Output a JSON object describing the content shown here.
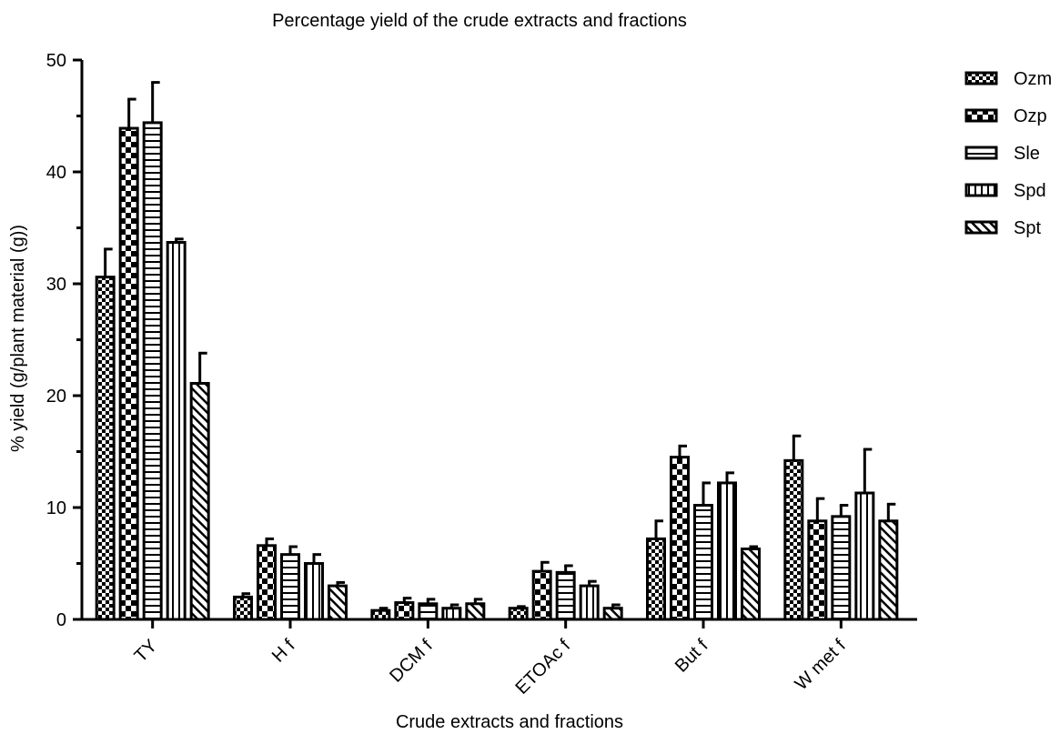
{
  "chart_data": {
    "type": "bar",
    "title": "Percentage yield of the crude extracts and fractions",
    "xlabel": "Crude extracts and fractions",
    "ylabel": "% yield (g/plant material (g))",
    "ylim": [
      0,
      50
    ],
    "yticks": [
      0,
      10,
      20,
      30,
      40,
      50
    ],
    "categories": [
      "TY",
      "H f",
      "DCM f",
      "ETOAc f",
      "But f",
      "W met f"
    ],
    "series": [
      {
        "name": "Ozm",
        "pattern": "checker-fine",
        "values": [
          30.6,
          2.0,
          0.8,
          1.0,
          7.2,
          14.2
        ],
        "errors": [
          2.5,
          0.3,
          0.2,
          0.15,
          1.6,
          2.2
        ]
      },
      {
        "name": "Ozp",
        "pattern": "checker-coarse",
        "values": [
          43.9,
          6.6,
          1.5,
          4.3,
          14.5,
          8.8
        ],
        "errors": [
          2.6,
          0.6,
          0.4,
          0.8,
          1.0,
          2.0
        ]
      },
      {
        "name": "Sle",
        "pattern": "horizontal-lines",
        "values": [
          44.4,
          5.8,
          1.4,
          4.2,
          10.2,
          9.2
        ],
        "errors": [
          3.6,
          0.7,
          0.4,
          0.6,
          2.0,
          1.0
        ]
      },
      {
        "name": "Spd",
        "pattern": "vertical-lines",
        "values": [
          33.7,
          5.0,
          1.0,
          3.0,
          12.2,
          11.3
        ],
        "errors": [
          0.3,
          0.8,
          0.3,
          0.4,
          0.9,
          3.9
        ]
      },
      {
        "name": "Spt",
        "pattern": "diagonal-lines",
        "values": [
          21.1,
          3.0,
          1.4,
          1.0,
          6.3,
          8.8
        ],
        "errors": [
          2.7,
          0.3,
          0.4,
          0.3,
          0.2,
          1.5
        ]
      }
    ],
    "legend_position": "right",
    "grid": false,
    "colors": {
      "bar_fill": "#ffffff",
      "bar_edge": "#000000",
      "axis": "#000000"
    }
  }
}
